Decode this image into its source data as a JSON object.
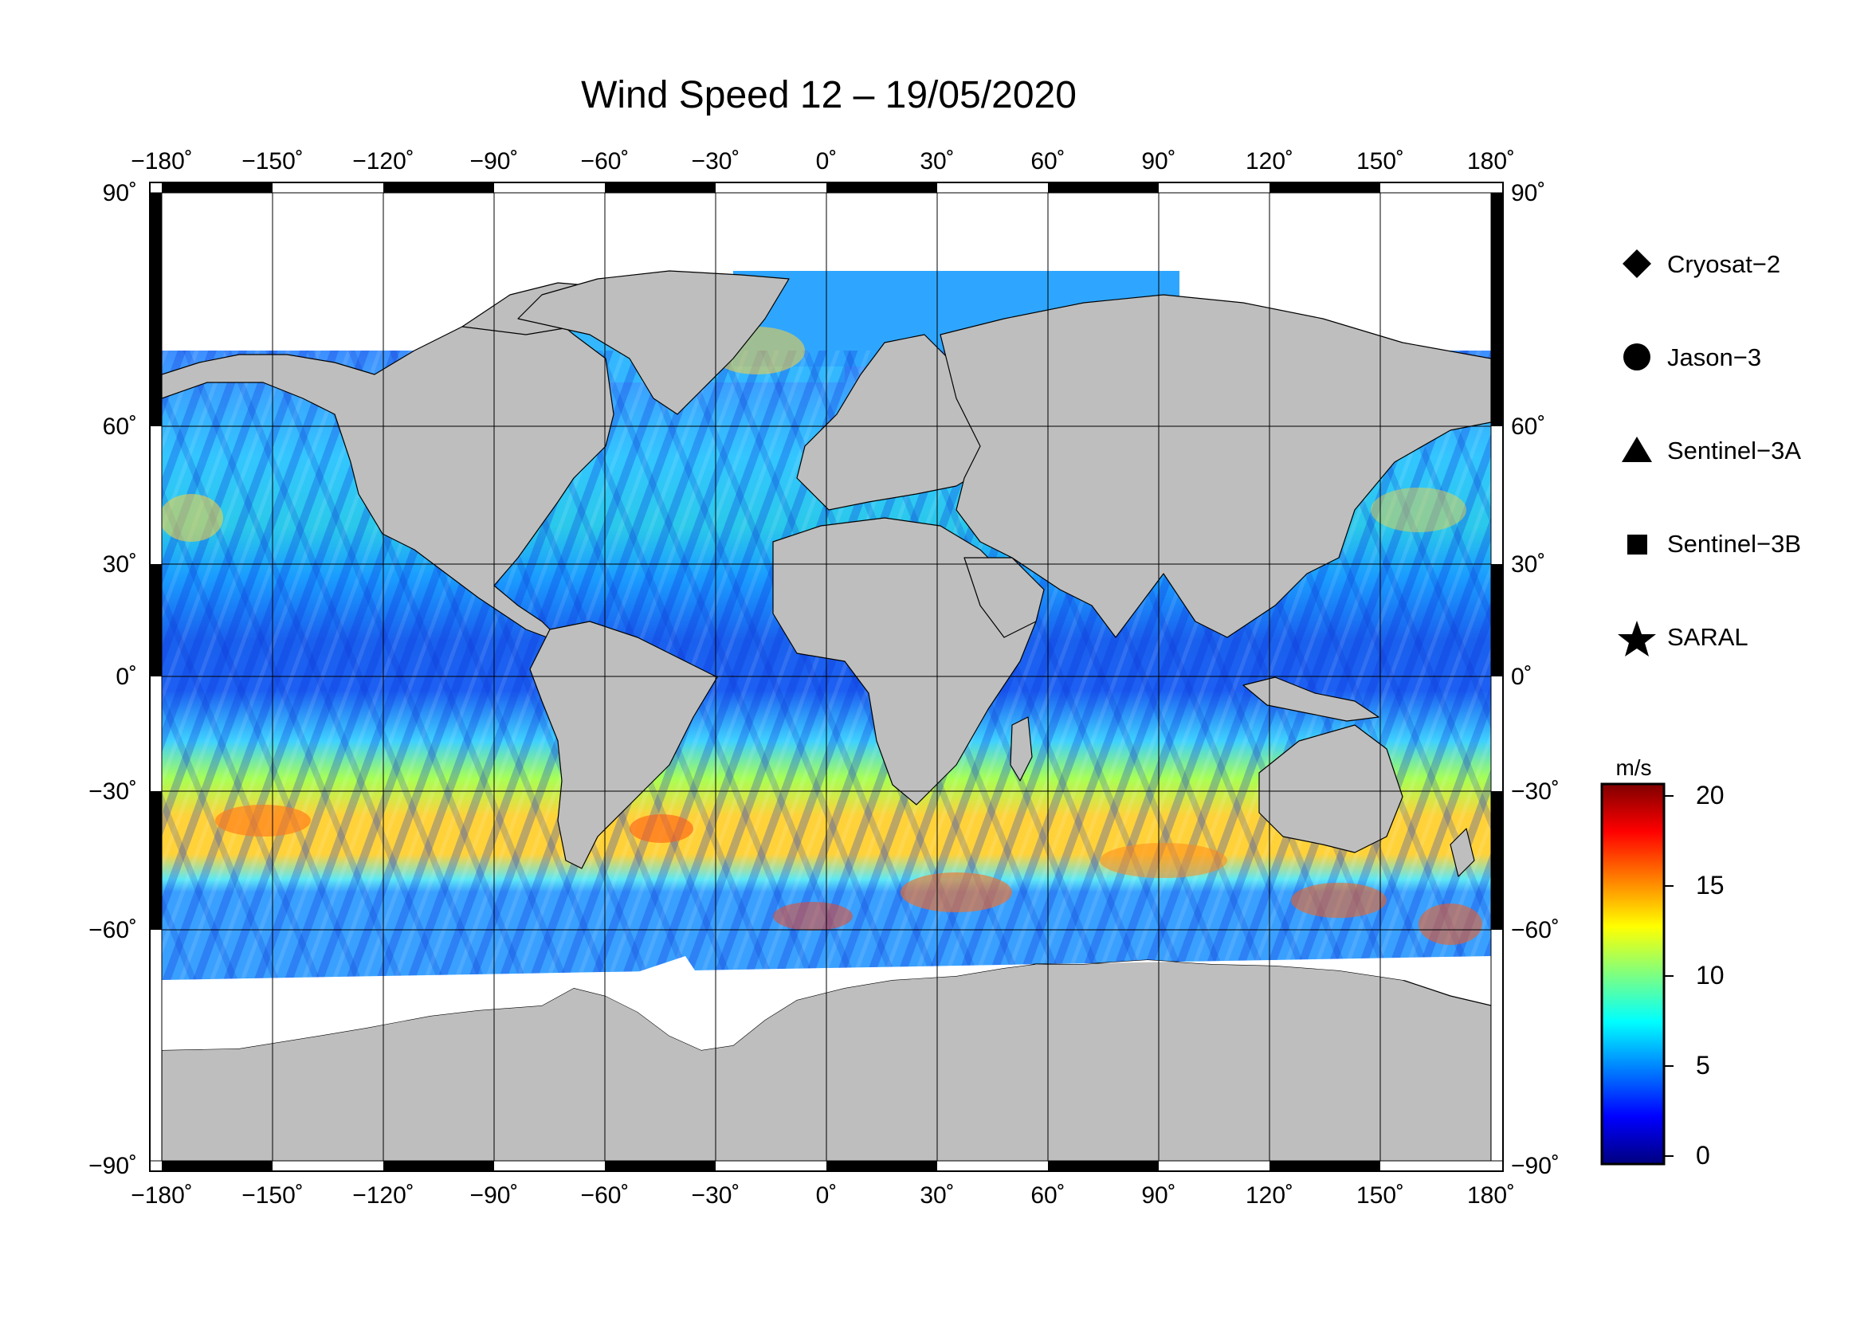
{
  "title": "Wind Speed 12 – 19/05/2020",
  "axes": {
    "lon_ticks": [
      "−180˚",
      "−150˚",
      "−120˚",
      "−90˚",
      "−60˚",
      "−30˚",
      "0˚",
      "30˚",
      "60˚",
      "90˚",
      "120˚",
      "150˚",
      "180˚"
    ],
    "lat_ticks_left": [
      "90˚",
      "60˚",
      "30˚",
      "0˚",
      "−30˚",
      "−60˚",
      "−90˚"
    ],
    "lat_ticks_right": [
      "90˚",
      "60˚",
      "30˚",
      "0˚",
      "−30˚",
      "−60˚",
      "−90˚"
    ],
    "lon_range": [
      -180,
      180
    ],
    "lat_range": [
      -90,
      90
    ],
    "grid": true
  },
  "legend": {
    "placement": "right",
    "items": [
      {
        "label": "Cryosat−2",
        "symbol": "diamond"
      },
      {
        "label": "Jason−3",
        "symbol": "circle"
      },
      {
        "label": "Sentinel−3A",
        "symbol": "triangle"
      },
      {
        "label": "Sentinel−3B",
        "symbol": "square"
      },
      {
        "label": "SARAL",
        "symbol": "star"
      }
    ]
  },
  "colorbar": {
    "unit": "m/s",
    "ticks": [
      "20",
      "15",
      "10",
      "5",
      "0"
    ],
    "range": [
      0,
      21
    ],
    "colors": [
      "#00007f",
      "#0000ff",
      "#007fff",
      "#00ffff",
      "#7fff7f",
      "#ffff00",
      "#ff7f00",
      "#ff0000",
      "#7f0000"
    ]
  },
  "colors": {
    "land": "#bebebe",
    "ice": "#ffffff",
    "grid": "#000000"
  }
}
